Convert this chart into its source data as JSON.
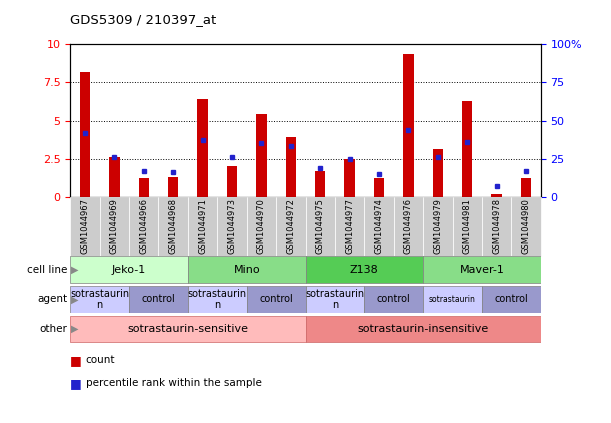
{
  "title": "GDS5309 / 210397_at",
  "samples": [
    "GSM1044967",
    "GSM1044969",
    "GSM1044966",
    "GSM1044968",
    "GSM1044971",
    "GSM1044973",
    "GSM1044970",
    "GSM1044972",
    "GSM1044975",
    "GSM1044977",
    "GSM1044974",
    "GSM1044976",
    "GSM1044979",
    "GSM1044981",
    "GSM1044978",
    "GSM1044980"
  ],
  "counts": [
    8.2,
    2.6,
    1.2,
    1.3,
    6.4,
    2.0,
    5.4,
    3.9,
    1.7,
    2.5,
    1.2,
    9.4,
    3.1,
    6.3,
    0.2,
    1.2
  ],
  "percentiles": [
    42,
    26,
    17,
    16,
    37,
    26,
    35,
    33,
    19,
    25,
    15,
    44,
    26,
    36,
    7,
    17
  ],
  "ylim_left": [
    0,
    10
  ],
  "ylim_right": [
    0,
    100
  ],
  "yticks_left": [
    0,
    2.5,
    5.0,
    7.5,
    10
  ],
  "yticks_right": [
    0,
    25,
    50,
    75,
    100
  ],
  "ytick_labels_left": [
    "0",
    "2.5",
    "5",
    "7.5",
    "10"
  ],
  "ytick_labels_right": [
    "0",
    "25",
    "50",
    "75",
    "100%"
  ],
  "bar_color": "#cc0000",
  "dot_color": "#2222cc",
  "cell_lines": [
    {
      "label": "Jeko-1",
      "start": 0,
      "end": 4,
      "color": "#ccffcc"
    },
    {
      "label": "Mino",
      "start": 4,
      "end": 8,
      "color": "#88dd88"
    },
    {
      "label": "Z138",
      "start": 8,
      "end": 12,
      "color": "#55cc55"
    },
    {
      "label": "Maver-1",
      "start": 12,
      "end": 16,
      "color": "#88dd88"
    }
  ],
  "agents": [
    {
      "label": "sotrastaurin\nn",
      "start": 0,
      "end": 2,
      "color": "#ccccff"
    },
    {
      "label": "control",
      "start": 2,
      "end": 4,
      "color": "#9999cc"
    },
    {
      "label": "sotrastaurin\nn",
      "start": 4,
      "end": 6,
      "color": "#ccccff"
    },
    {
      "label": "control",
      "start": 6,
      "end": 8,
      "color": "#9999cc"
    },
    {
      "label": "sotrastaurin\nn",
      "start": 8,
      "end": 10,
      "color": "#ccccff"
    },
    {
      "label": "control",
      "start": 10,
      "end": 12,
      "color": "#9999cc"
    },
    {
      "label": "sotrastaurin",
      "start": 12,
      "end": 14,
      "color": "#ccccff"
    },
    {
      "label": "control",
      "start": 14,
      "end": 16,
      "color": "#9999cc"
    }
  ],
  "others": [
    {
      "label": "sotrastaurin-sensitive",
      "start": 0,
      "end": 8,
      "color": "#ffbbbb"
    },
    {
      "label": "sotrastaurin-insensitive",
      "start": 8,
      "end": 16,
      "color": "#ee8888"
    }
  ],
  "row_labels": [
    "cell line",
    "agent",
    "other"
  ],
  "legend_count_color": "#cc0000",
  "legend_dot_color": "#2222cc",
  "legend_count_label": "count",
  "legend_percentile_label": "percentile rank within the sample",
  "sample_box_color": "#cccccc",
  "xlabel_fontsize": 6.0,
  "bar_width": 0.35
}
